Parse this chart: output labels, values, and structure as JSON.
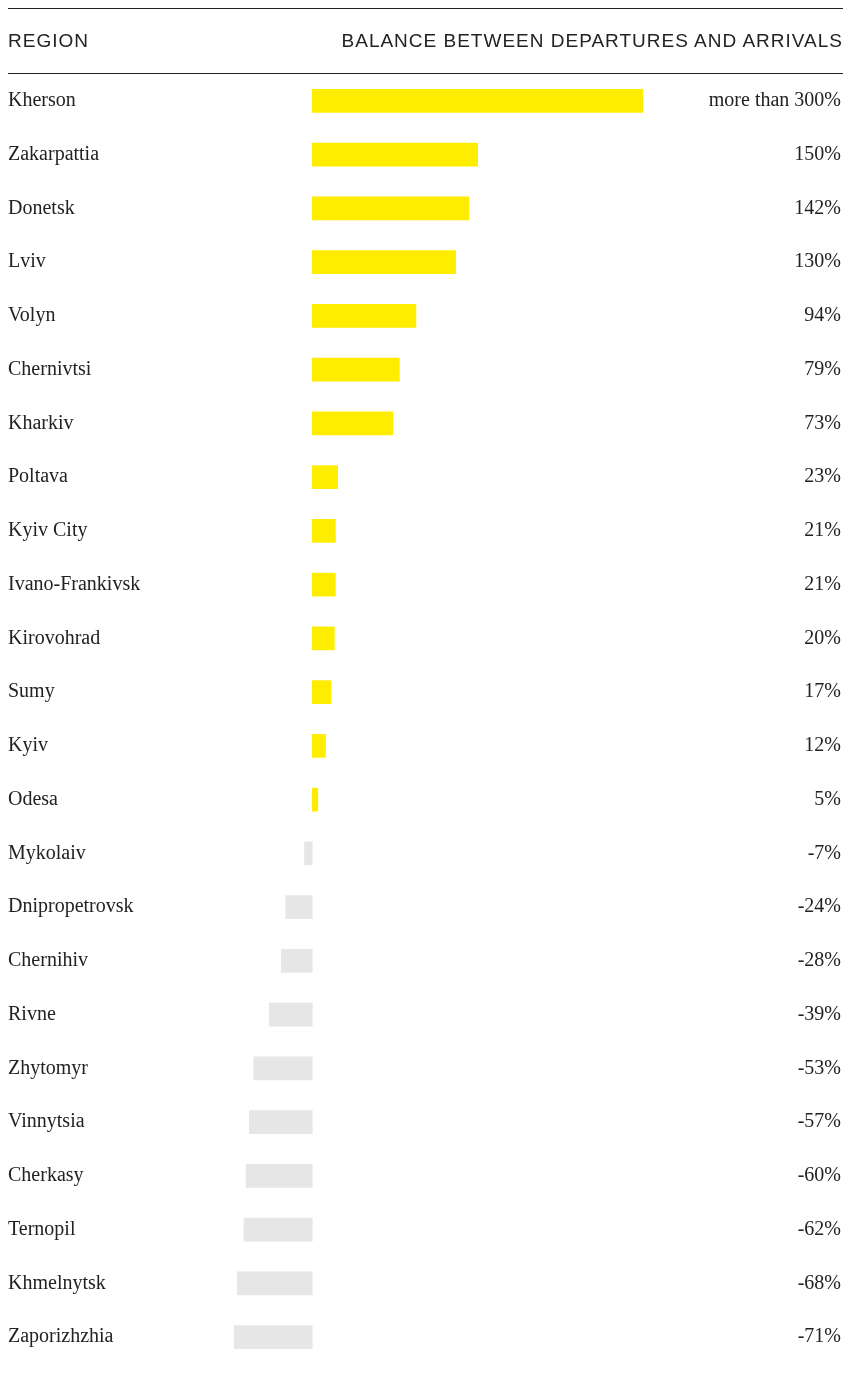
{
  "chart_data": {
    "type": "bar",
    "orientation": "horizontal",
    "ylabel": "REGION",
    "xlabel": "BALANCE BETWEEN DEPARTURES AND ARRIVALS",
    "categories": [
      "Kherson",
      "Zakarpattia",
      "Donetsk",
      "Lviv",
      "Volyn",
      "Chernivtsi",
      "Kharkiv",
      "Poltava",
      "Kyiv City",
      "Ivano-Frankivsk",
      "Kirovohrad",
      "Sumy",
      "Kyiv",
      "Odesa",
      "Mykolaiv",
      "Dnipropetrovsk",
      "Chernihiv",
      "Rivne",
      "Zhytomyr",
      "Vinnytsia",
      "Cherkasy",
      "Ternopil",
      "Khmelnytsk",
      "Zaporizhzhia"
    ],
    "values": [
      300,
      150,
      142,
      130,
      94,
      79,
      73,
      23,
      21,
      21,
      20,
      17,
      12,
      5,
      -7,
      -24,
      -28,
      -39,
      -53,
      -57,
      -60,
      -62,
      -68,
      -71
    ],
    "value_labels": [
      "more than 300%",
      "150%",
      "142%",
      "130%",
      "94%",
      "79%",
      "73%",
      "23%",
      "21%",
      "21%",
      "20%",
      "17%",
      "12%",
      "5%",
      "-7%",
      "-24%",
      "-28%",
      "-39%",
      "-53%",
      "-57%",
      "-60%",
      "-62%",
      "-68%",
      "-71%"
    ],
    "colors": [
      "#ffed00",
      "#ffed00",
      "#ffed00",
      "#ffed00",
      "#ffed00",
      "#ffed00",
      "#ffed00",
      "#ffed00",
      "#ffed00",
      "#ffed00",
      "#ffed00",
      "#ffed00",
      "#ffed00",
      "#ffed00",
      "#e6e6e6",
      "#e6e6e6",
      "#e6e6e6",
      "#e6e6e6",
      "#e6e6e6",
      "#e6e6e6",
      "#e6e6e6",
      "#e6e6e6",
      "#e6e6e6",
      "#e6e6e6"
    ],
    "legend": false
  }
}
